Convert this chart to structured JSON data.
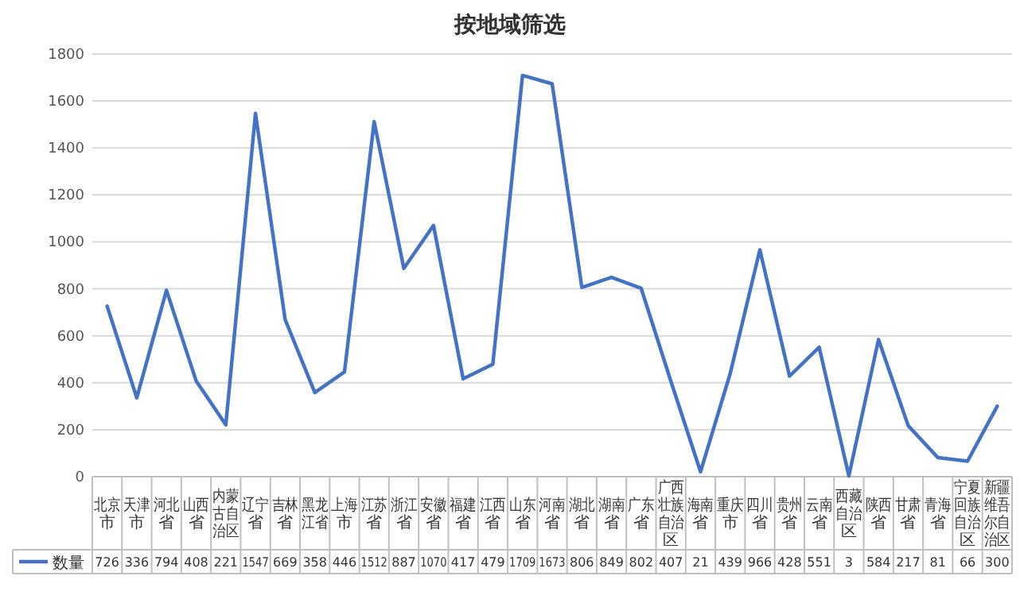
{
  "chart_data": {
    "type": "line",
    "title": "按地域筛选",
    "categories": [
      "北京市",
      "天津市",
      "河北省",
      "山西省",
      "内蒙古自治区",
      "辽宁省",
      "吉林省",
      "黑龙江省",
      "上海市",
      "江苏省",
      "浙江省",
      "安徽省",
      "福建省",
      "江西省",
      "山东省",
      "河南省",
      "湖北省",
      "湖南省",
      "广东省",
      "广西壮族自治区",
      "海南省",
      "重庆市",
      "四川省",
      "贵州省",
      "云南省",
      "西藏自治区",
      "陕西省",
      "甘肃省",
      "青海省",
      "宁夏回族自治区",
      "新疆维吾尔自治区"
    ],
    "series": [
      {
        "name": "数量",
        "color": "#4472c4",
        "values": [
          726,
          336,
          794,
          408,
          221,
          1547,
          669,
          358,
          446,
          1512,
          887,
          1070,
          417,
          479,
          1709,
          1673,
          806,
          849,
          802,
          407,
          21,
          439,
          966,
          428,
          551,
          3,
          584,
          217,
          81,
          66,
          300
        ]
      }
    ],
    "ylim": [
      0,
      1800
    ],
    "yticks": [
      0,
      200,
      400,
      600,
      800,
      1000,
      1200,
      1400,
      1600,
      1800
    ],
    "grid": "y",
    "legend": "bottom",
    "data_labels": true
  }
}
